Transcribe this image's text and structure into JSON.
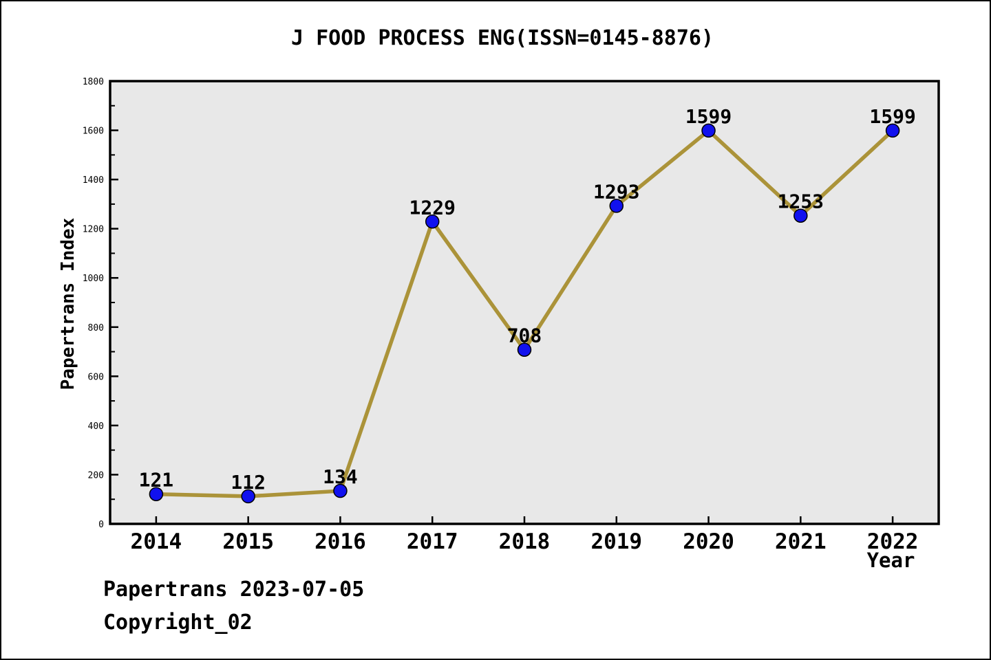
{
  "title": "J FOOD PROCESS ENG(ISSN=0145-8876)",
  "footer": {
    "line1": "Papertrans 2023-07-05",
    "line2": "Copyright_02"
  },
  "chart_data": {
    "type": "line",
    "title": "J FOOD PROCESS ENG(ISSN=0145-8876)",
    "xlabel": "Year",
    "ylabel": "Papertrans Index",
    "x": [
      2014,
      2015,
      2016,
      2017,
      2018,
      2019,
      2020,
      2021,
      2022
    ],
    "series": [
      {
        "name": "Papertrans Index",
        "values": [
          121,
          112,
          134,
          1229,
          708,
          1293,
          1599,
          1253,
          1599
        ]
      }
    ],
    "point_labels": [
      "121",
      "112",
      "134",
      "1229",
      "708",
      "1293",
      "1599",
      "1253",
      "1599"
    ],
    "xlim": [
      2013.5,
      2022.5
    ],
    "ylim": [
      0,
      1800
    ],
    "ytick_major_step": 200,
    "ytick_minor_step": 100,
    "grid": false,
    "legend": "none",
    "colors": {
      "line": "#ab9339",
      "marker_fill": "#1111ee",
      "marker_edge": "#000000",
      "plot_background": "#e8e8e8",
      "frame": "#000000",
      "text": "#000000"
    }
  }
}
